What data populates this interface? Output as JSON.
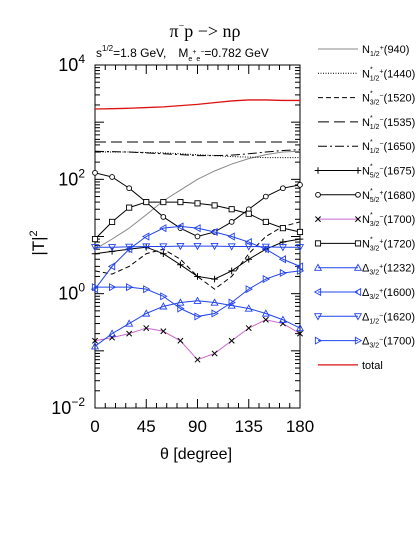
{
  "chart_data": {
    "type": "line",
    "title": "π⁻p −> nρ",
    "subtitle": "s^{1/2}=1.8 GeV,   M_{e+e−}=0.782 GeV",
    "title_parts": {
      "pi": "π",
      "minus": "−",
      "rest": "p −> nρ"
    },
    "subtitle_parts": {
      "s": "s",
      "s_exp": "1/2",
      "energy": "=1.8 GeV,",
      "m": "M",
      "m_sub_e1": "e",
      "m_sup_plus": "+",
      "m_sub_e2": "e",
      "m_sup_minus": "−",
      "mass": "=0.782 GeV"
    },
    "xlabel": "θ [degree]",
    "ylabel": "|T|",
    "ylabel_exp": "2",
    "xlim": [
      0,
      180
    ],
    "ylim": [
      0.01,
      10000
    ],
    "y_scale": "log",
    "x_ticks": [
      "0",
      "45",
      "90",
      "135",
      "180"
    ],
    "y_ticks": [
      {
        "value": 0.01,
        "base": "10",
        "exp": "−2"
      },
      {
        "value": 1,
        "base": "10",
        "exp": "0"
      },
      {
        "value": 100,
        "base": "10",
        "exp": "2"
      },
      {
        "value": 10000,
        "base": "10",
        "exp": "4"
      }
    ],
    "x": [
      0,
      15,
      30,
      45,
      60,
      75,
      90,
      105,
      120,
      135,
      150,
      165,
      180
    ],
    "legend_position": "right",
    "series": [
      {
        "name": "N_{1/2}+(940)",
        "label_parts": {
          "base": "N",
          "sub": "1/2",
          "sup": "+",
          "sup_after": "",
          "tail": "(940)"
        },
        "color": "#888888",
        "dash": "",
        "marker": "none",
        "values": [
          6,
          9,
          14,
          24,
          42,
          65,
          100,
          140,
          185,
          230,
          270,
          300,
          310
        ]
      },
      {
        "name": "N*_{1/2}+(1440)",
        "label_parts": {
          "base": "N",
          "sub": "1/2",
          "sup": "*",
          "sup_after": "+",
          "tail": "(1440)"
        },
        "color": "#000000",
        "dash": "1,1.5",
        "marker": "none",
        "values": [
          300,
          300,
          300,
          295,
          290,
          280,
          270,
          260,
          250,
          245,
          240,
          240,
          240
        ]
      },
      {
        "name": "N*_{3/2}−(1520)",
        "label_parts": {
          "base": "N",
          "sub": "3/2",
          "sup": "*",
          "sup_after": "−",
          "tail": "(1520)"
        },
        "color": "#000000",
        "dash": "5,3",
        "marker": "none",
        "values": [
          2.5,
          2.2,
          3,
          5,
          6,
          4,
          2,
          1.2,
          2,
          5,
          10,
          15,
          18
        ]
      },
      {
        "name": "N*_{1/2}−(1535)",
        "label_parts": {
          "base": "N",
          "sub": "1/2",
          "sup": "*",
          "sup_after": "−",
          "tail": "(1535)"
        },
        "color": "#000000",
        "dash": "11,5",
        "marker": "none",
        "values": [
          450,
          450,
          450,
          450,
          450,
          450,
          450,
          450,
          450,
          450,
          450,
          450,
          450
        ]
      },
      {
        "name": "N*_{1/2}−(1650)",
        "label_parts": {
          "base": "N",
          "sub": "1/2",
          "sup": "*",
          "sup_after": "−",
          "tail": "(1650)"
        },
        "color": "#000000",
        "dash": "9,3,2,3",
        "marker": "none",
        "values": [
          310,
          305,
          300,
          290,
          280,
          270,
          260,
          260,
          265,
          280,
          300,
          320,
          330
        ]
      },
      {
        "name": "N*_{5/2}−(1675)",
        "label_parts": {
          "base": "N",
          "sub": "5/2",
          "sup": "*",
          "sup_after": "−",
          "tail": "(1675)"
        },
        "color": "#000000",
        "dash": "",
        "marker": "plus",
        "values": [
          5,
          5.5,
          6,
          6.5,
          5,
          3.2,
          2,
          1.8,
          2.5,
          4,
          6,
          8,
          9
        ]
      },
      {
        "name": "N*_{5/2}+(1680)",
        "label_parts": {
          "base": "N",
          "sub": "5/2",
          "sup": "*",
          "sup_after": "+",
          "tail": "(1680)"
        },
        "color": "#000000",
        "dash": "",
        "marker": "circle",
        "values": [
          130,
          110,
          70,
          40,
          22,
          14,
          10,
          12,
          18,
          30,
          50,
          70,
          80
        ]
      },
      {
        "name": "N*_{3/2}−(1700)",
        "label_parts": {
          "base": "N",
          "sub": "3/2",
          "sup": "*",
          "sup_after": "−",
          "tail": "(1700)"
        },
        "color": "#cc66cc",
        "dash": "",
        "marker": "cross",
        "values": [
          0.15,
          0.17,
          0.2,
          0.25,
          0.22,
          0.15,
          0.07,
          0.09,
          0.15,
          0.25,
          0.35,
          0.3,
          0.2
        ]
      },
      {
        "name": "N*_{3/2}+(1720)",
        "label_parts": {
          "base": "N",
          "sub": "3/2",
          "sup": "*",
          "sup_after": "+",
          "tail": "(1720)"
        },
        "color": "#000000",
        "dash": "",
        "marker": "square",
        "values": [
          9,
          18,
          32,
          40,
          40,
          40,
          38,
          35,
          30,
          25,
          18,
          14,
          12
        ]
      },
      {
        "name": "Δ_{3/2}+(1232)",
        "label_parts": {
          "base": "Δ",
          "sub": "3/2",
          "sup": "+",
          "sup_after": "",
          "tail": "(1232)"
        },
        "color": "#2244ee",
        "dash": "",
        "marker": "triangle-up",
        "values": [
          0.12,
          0.2,
          0.3,
          0.45,
          0.6,
          0.7,
          0.75,
          0.7,
          0.62,
          0.55,
          0.45,
          0.35,
          0.25
        ]
      },
      {
        "name": "Δ_{3/2}+(1600)",
        "label_parts": {
          "base": "Δ",
          "sub": "3/2",
          "sup": "+",
          "sup_after": "",
          "tail": "(1600)"
        },
        "color": "#2244ee",
        "dash": "",
        "marker": "triangle-left",
        "values": [
          1.2,
          3,
          6,
          10,
          14,
          15,
          14,
          12,
          10,
          8,
          6,
          4,
          3
        ]
      },
      {
        "name": "Δ_{1/2}−(1620)",
        "label_parts": {
          "base": "Δ",
          "sub": "1/2",
          "sup": "−",
          "sup_after": "",
          "tail": "(1620)"
        },
        "color": "#2244ee",
        "dash": "",
        "marker": "triangle-down",
        "values": [
          6.5,
          6.5,
          6.6,
          6.7,
          6.7,
          6.8,
          6.8,
          6.8,
          6.7,
          6.7,
          6.6,
          6.5,
          6.5
        ]
      },
      {
        "name": "Δ_{3/2}−(1700)",
        "label_parts": {
          "base": "Δ",
          "sub": "3/2",
          "sup": "−",
          "sup_after": "",
          "tail": "(1700)"
        },
        "color": "#2244ee",
        "dash": "",
        "marker": "triangle-right",
        "values": [
          1.3,
          1.3,
          1.3,
          1.2,
          0.9,
          0.55,
          0.4,
          0.45,
          0.7,
          1.2,
          1.8,
          2.3,
          2.5
        ]
      },
      {
        "name": "total",
        "label_parts": {
          "base": "total",
          "sub": "",
          "sup": "",
          "sup_after": "",
          "tail": ""
        },
        "color": "#dd1111",
        "dash": "",
        "marker": "none",
        "values": [
          1700,
          1720,
          1750,
          1800,
          1850,
          1950,
          2050,
          2200,
          2350,
          2450,
          2450,
          2400,
          2400
        ]
      }
    ]
  }
}
